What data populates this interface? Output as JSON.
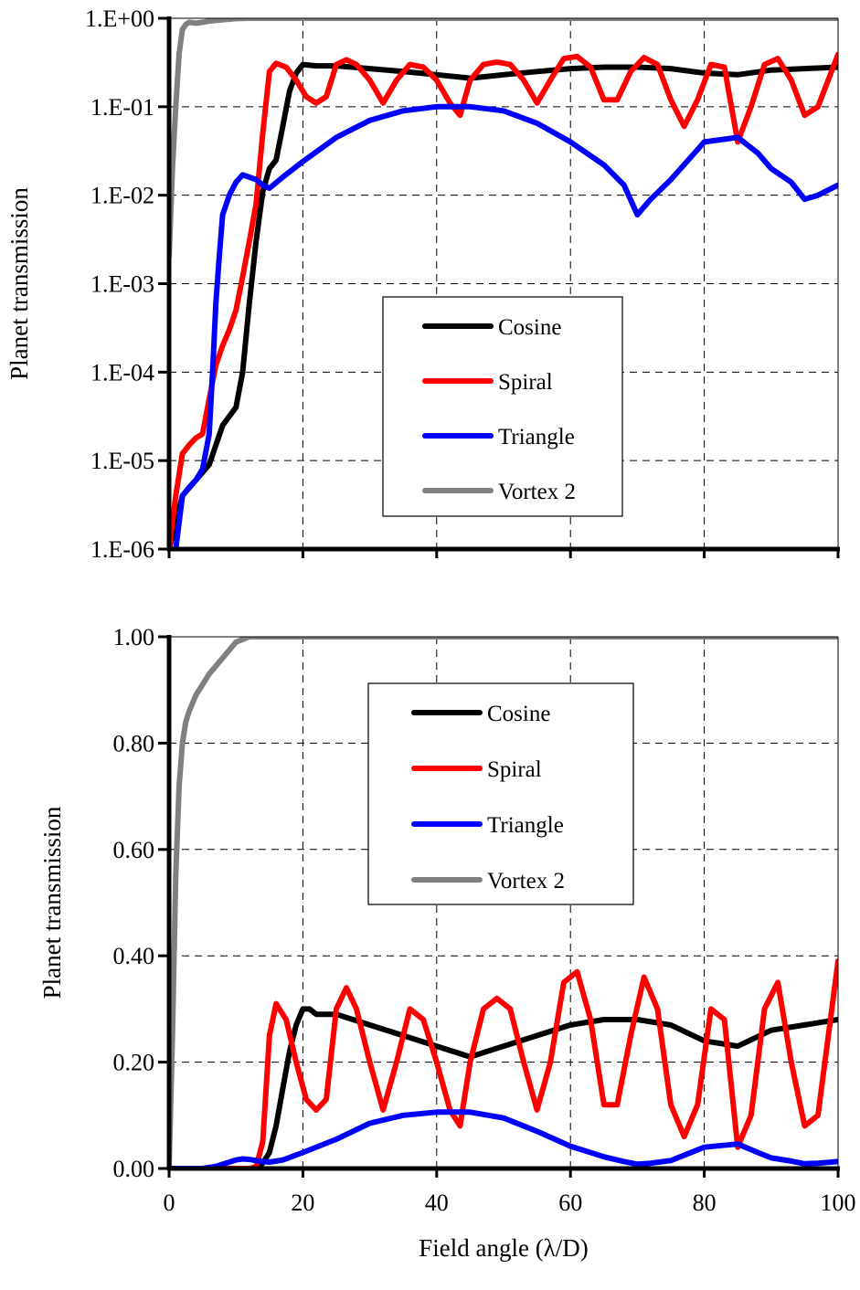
{
  "chart_data": [
    {
      "type": "line",
      "yscale": "log",
      "ylabel": "Planet transmission",
      "xlabel": "",
      "xlim": [
        0,
        100
      ],
      "ylim": [
        1e-06,
        1
      ],
      "grid": true,
      "legend_position": "center-right",
      "xticks": [
        0,
        20,
        40,
        60,
        80,
        100
      ],
      "xtick_labels": [
        "",
        "",
        "",
        "",
        "",
        ""
      ],
      "yticks": [
        1e-06,
        1e-05,
        0.0001,
        0.001,
        0.01,
        0.1,
        1
      ],
      "ytick_labels": [
        "1.E-06",
        "1.E-05",
        "1.E-04",
        "1.E-03",
        "1.E-02",
        "1.E-01",
        "1.E+00"
      ],
      "series": [
        {
          "name": "Cosine",
          "color": "#000000",
          "x": [
            0,
            2,
            4,
            6,
            8,
            10,
            11,
            12,
            13,
            14,
            15,
            16,
            17,
            18,
            19,
            20,
            22,
            25,
            30,
            35,
            40,
            45,
            50,
            55,
            60,
            65,
            70,
            75,
            80,
            85,
            90,
            95,
            100
          ],
          "y": [
            1e-06,
            4e-06,
            6e-06,
            9e-06,
            2.5e-05,
            4e-05,
            0.0001,
            0.0006,
            0.003,
            0.011,
            0.02,
            0.025,
            0.06,
            0.15,
            0.24,
            0.3,
            0.29,
            0.29,
            0.27,
            0.25,
            0.23,
            0.21,
            0.23,
            0.25,
            0.27,
            0.28,
            0.28,
            0.27,
            0.24,
            0.23,
            0.26,
            0.27,
            0.28
          ]
        },
        {
          "name": "Spiral",
          "color": "#ff0000",
          "x": [
            0,
            1,
            2,
            3,
            4,
            5,
            6,
            7,
            8,
            9,
            10,
            11,
            12,
            13,
            14,
            15,
            16,
            17.5,
            19,
            20.5,
            22,
            23.5,
            25,
            26.5,
            28,
            30,
            32,
            34,
            36,
            38,
            40,
            42,
            43.5,
            45,
            47,
            49,
            51,
            53,
            55,
            57,
            59,
            61,
            63,
            65,
            67,
            69,
            71,
            73,
            75,
            77,
            79,
            81,
            83,
            85,
            87,
            89,
            91,
            93,
            95,
            97,
            100
          ],
          "y": [
            1e-06,
            4e-06,
            1.2e-05,
            1.5e-05,
            1.8e-05,
            2e-05,
            5e-05,
            0.00012,
            0.0002,
            0.0003,
            0.0005,
            0.0012,
            0.003,
            0.008,
            0.05,
            0.25,
            0.31,
            0.28,
            0.2,
            0.13,
            0.11,
            0.13,
            0.3,
            0.34,
            0.3,
            0.2,
            0.11,
            0.2,
            0.3,
            0.28,
            0.2,
            0.11,
            0.08,
            0.2,
            0.3,
            0.32,
            0.3,
            0.2,
            0.11,
            0.2,
            0.35,
            0.37,
            0.28,
            0.12,
            0.12,
            0.25,
            0.36,
            0.3,
            0.12,
            0.06,
            0.12,
            0.3,
            0.28,
            0.04,
            0.1,
            0.3,
            0.35,
            0.2,
            0.08,
            0.1,
            0.39
          ]
        },
        {
          "name": "Triangle",
          "color": "#0000ff",
          "x": [
            1,
            2,
            3,
            4,
            5,
            6,
            6.5,
            7,
            7.5,
            8,
            9,
            10,
            11,
            12,
            13,
            14,
            15,
            17,
            20,
            25,
            30,
            35,
            40,
            45,
            50,
            55,
            60,
            65,
            68,
            70,
            72,
            75,
            80,
            85,
            88,
            90,
            93,
            95,
            97,
            100
          ],
          "y": [
            1e-06,
            4e-06,
            5e-06,
            6e-06,
            8e-06,
            2e-05,
            0.0001,
            0.0006,
            0.002,
            0.006,
            0.01,
            0.014,
            0.017,
            0.016,
            0.015,
            0.013,
            0.012,
            0.016,
            0.024,
            0.045,
            0.07,
            0.09,
            0.1,
            0.1,
            0.09,
            0.065,
            0.04,
            0.022,
            0.013,
            0.006,
            0.009,
            0.015,
            0.04,
            0.045,
            0.03,
            0.02,
            0.014,
            0.009,
            0.01,
            0.013
          ]
        },
        {
          "name": "Vortex 2",
          "color": "#808080",
          "x": [
            0,
            0.5,
            1,
            1.5,
            2,
            2.5,
            3,
            4,
            5,
            6,
            8,
            10,
            12,
            15,
            20,
            30,
            40,
            50,
            60,
            70,
            80,
            90,
            100
          ],
          "y": [
            0.002,
            0.02,
            0.1,
            0.4,
            0.75,
            0.85,
            0.9,
            0.88,
            0.9,
            0.93,
            0.96,
            0.99,
            1,
            1,
            1,
            1,
            1,
            1,
            1,
            1,
            1,
            1,
            1
          ]
        }
      ]
    },
    {
      "type": "line",
      "yscale": "linear",
      "ylabel": "Planet transmission",
      "xlabel": "Field angle (λ/D)",
      "xlim": [
        0,
        100
      ],
      "ylim": [
        0,
        1
      ],
      "grid": true,
      "legend_position": "top-center",
      "xticks": [
        0,
        20,
        40,
        60,
        80,
        100
      ],
      "xtick_labels": [
        "0",
        "20",
        "40",
        "60",
        "80",
        "100"
      ],
      "yticks": [
        0,
        0.2,
        0.4,
        0.6,
        0.8,
        1.0
      ],
      "ytick_labels": [
        "0.00",
        "0.20",
        "0.40",
        "0.60",
        "0.80",
        "1.00"
      ],
      "series": [
        {
          "name": "Cosine",
          "color": "#000000",
          "x": [
            0,
            10,
            13,
            14,
            15,
            16,
            17,
            18,
            19,
            20,
            21,
            22,
            25,
            30,
            35,
            40,
            45,
            50,
            55,
            60,
            65,
            70,
            75,
            80,
            85,
            90,
            95,
            100
          ],
          "y": [
            0,
            0,
            0,
            0.01,
            0.03,
            0.08,
            0.15,
            0.22,
            0.27,
            0.3,
            0.3,
            0.29,
            0.29,
            0.27,
            0.25,
            0.23,
            0.21,
            0.23,
            0.25,
            0.27,
            0.28,
            0.28,
            0.27,
            0.24,
            0.23,
            0.26,
            0.27,
            0.28
          ]
        },
        {
          "name": "Spiral",
          "color": "#ff0000",
          "x": [
            0,
            5,
            10,
            12,
            13,
            14,
            15,
            16,
            17.5,
            19,
            20.5,
            22,
            23.5,
            25,
            26.5,
            28,
            30,
            32,
            34,
            36,
            38,
            40,
            42,
            43.5,
            45,
            47,
            49,
            51,
            53,
            55,
            57,
            59,
            61,
            63,
            65,
            67,
            69,
            71,
            73,
            75,
            77,
            79,
            81,
            83,
            85,
            87,
            89,
            91,
            93,
            95,
            97,
            100
          ],
          "y": [
            0,
            0,
            0,
            0,
            0.003,
            0.05,
            0.25,
            0.31,
            0.28,
            0.2,
            0.13,
            0.11,
            0.13,
            0.3,
            0.34,
            0.3,
            0.2,
            0.11,
            0.2,
            0.3,
            0.28,
            0.2,
            0.11,
            0.08,
            0.2,
            0.3,
            0.32,
            0.3,
            0.2,
            0.11,
            0.2,
            0.35,
            0.37,
            0.28,
            0.12,
            0.12,
            0.25,
            0.36,
            0.3,
            0.12,
            0.06,
            0.12,
            0.3,
            0.28,
            0.04,
            0.1,
            0.3,
            0.35,
            0.2,
            0.08,
            0.1,
            0.39
          ]
        },
        {
          "name": "Triangle",
          "color": "#0000ff",
          "x": [
            0,
            5,
            7,
            8,
            9,
            10,
            11,
            12,
            13,
            14,
            15,
            17,
            20,
            25,
            30,
            35,
            40,
            45,
            50,
            55,
            60,
            65,
            68,
            70,
            72,
            75,
            80,
            85,
            88,
            90,
            93,
            95,
            97,
            100
          ],
          "y": [
            0,
            0,
            0.004,
            0.008,
            0.012,
            0.016,
            0.018,
            0.017,
            0.015,
            0.013,
            0.012,
            0.016,
            0.03,
            0.055,
            0.085,
            0.1,
            0.106,
            0.106,
            0.095,
            0.07,
            0.042,
            0.022,
            0.013,
            0.008,
            0.01,
            0.015,
            0.04,
            0.046,
            0.03,
            0.02,
            0.014,
            0.009,
            0.01,
            0.013
          ]
        },
        {
          "name": "Vortex 2",
          "color": "#808080",
          "x": [
            0,
            0.5,
            1,
            1.5,
            2,
            2.5,
            3,
            4,
            5,
            6,
            8,
            10,
            12,
            15,
            20,
            30,
            40,
            50,
            60,
            70,
            80,
            90,
            100
          ],
          "y": [
            0,
            0.25,
            0.55,
            0.72,
            0.8,
            0.84,
            0.86,
            0.89,
            0.91,
            0.93,
            0.96,
            0.99,
            1,
            1,
            1,
            1,
            1,
            1,
            1,
            1,
            1,
            1,
            1
          ]
        }
      ]
    }
  ]
}
